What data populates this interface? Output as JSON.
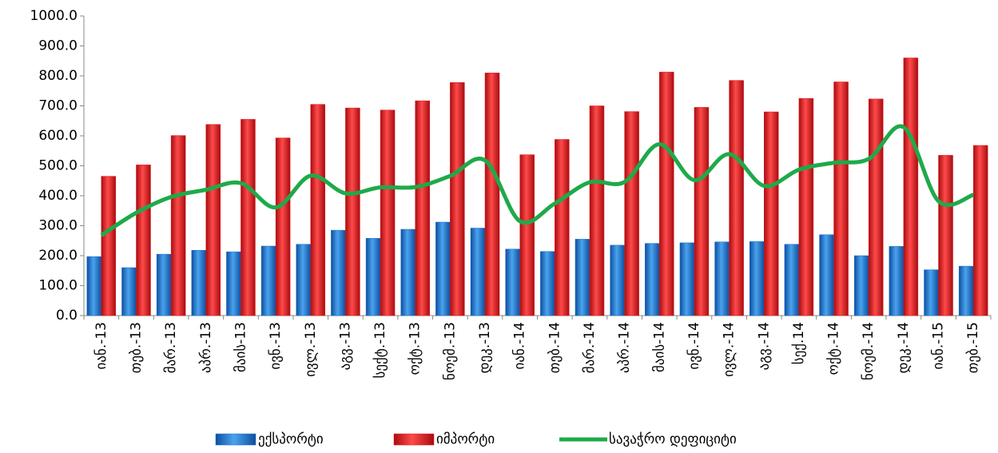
{
  "chart_data": {
    "type": "bar",
    "categories": [
      "იან.-13",
      "თებ.-13",
      "მარ.-13",
      "აპრ.-13",
      "მაის-13",
      "ივნ.-13",
      "ივლ.-13",
      "აგვ.-13",
      "სექტ.-13",
      "ოქტ.-13",
      "ნოემ.-13",
      "დეკ.-13",
      "იან.-14",
      "თებ.-14",
      "მარ.-14",
      "აპრ.-14",
      "მაის-14",
      "ივნ.-14",
      "ივლ.-14",
      "აგვ.-14",
      "სექ.14",
      "ოქტ.-14",
      "ნოემ.-14",
      "დეკ.-14",
      "იან.-15",
      "თებ.-15"
    ],
    "series": [
      {
        "name": "ექსპორტი",
        "color": "#1f6fc5",
        "values": [
          197,
          160,
          205,
          218,
          213,
          232,
          238,
          285,
          258,
          288,
          312,
          292,
          222,
          214,
          255,
          235,
          241,
          243,
          246,
          247,
          238,
          270,
          200,
          231,
          153,
          165
        ]
      },
      {
        "name": "იმპორტი",
        "color": "#e3171d",
        "values": [
          465,
          503,
          601,
          638,
          655,
          593,
          705,
          693,
          686,
          717,
          778,
          810,
          537,
          588,
          700,
          681,
          813,
          695,
          785,
          680,
          725,
          780,
          723,
          860,
          535,
          568
        ]
      },
      {
        "name": "სავაჭრო დეფიციტი",
        "color": "#1eaa4a",
        "type": "line",
        "values": [
          268,
          343,
          396,
          420,
          442,
          361,
          467,
          408,
          428,
          429,
          466,
          518,
          315,
          374,
          445,
          446,
          572,
          452,
          539,
          433,
          487,
          510,
          523,
          629,
          382,
          403
        ]
      }
    ],
    "ylim": [
      0,
      1000
    ],
    "yticks": [
      {
        "value": 0,
        "label": "0.0"
      },
      {
        "value": 100,
        "label": "100.0"
      },
      {
        "value": 200,
        "label": "200.0"
      },
      {
        "value": 300,
        "label": "300.0"
      },
      {
        "value": 400,
        "label": "400.0"
      },
      {
        "value": 500,
        "label": "500.0"
      },
      {
        "value": 600,
        "label": "600.0"
      },
      {
        "value": 700,
        "label": "700.0"
      },
      {
        "value": 800,
        "label": "800.0"
      },
      {
        "value": 900,
        "label": "900.0"
      },
      {
        "value": 1000,
        "label": "1000.0"
      }
    ],
    "legend": "bottom"
  }
}
